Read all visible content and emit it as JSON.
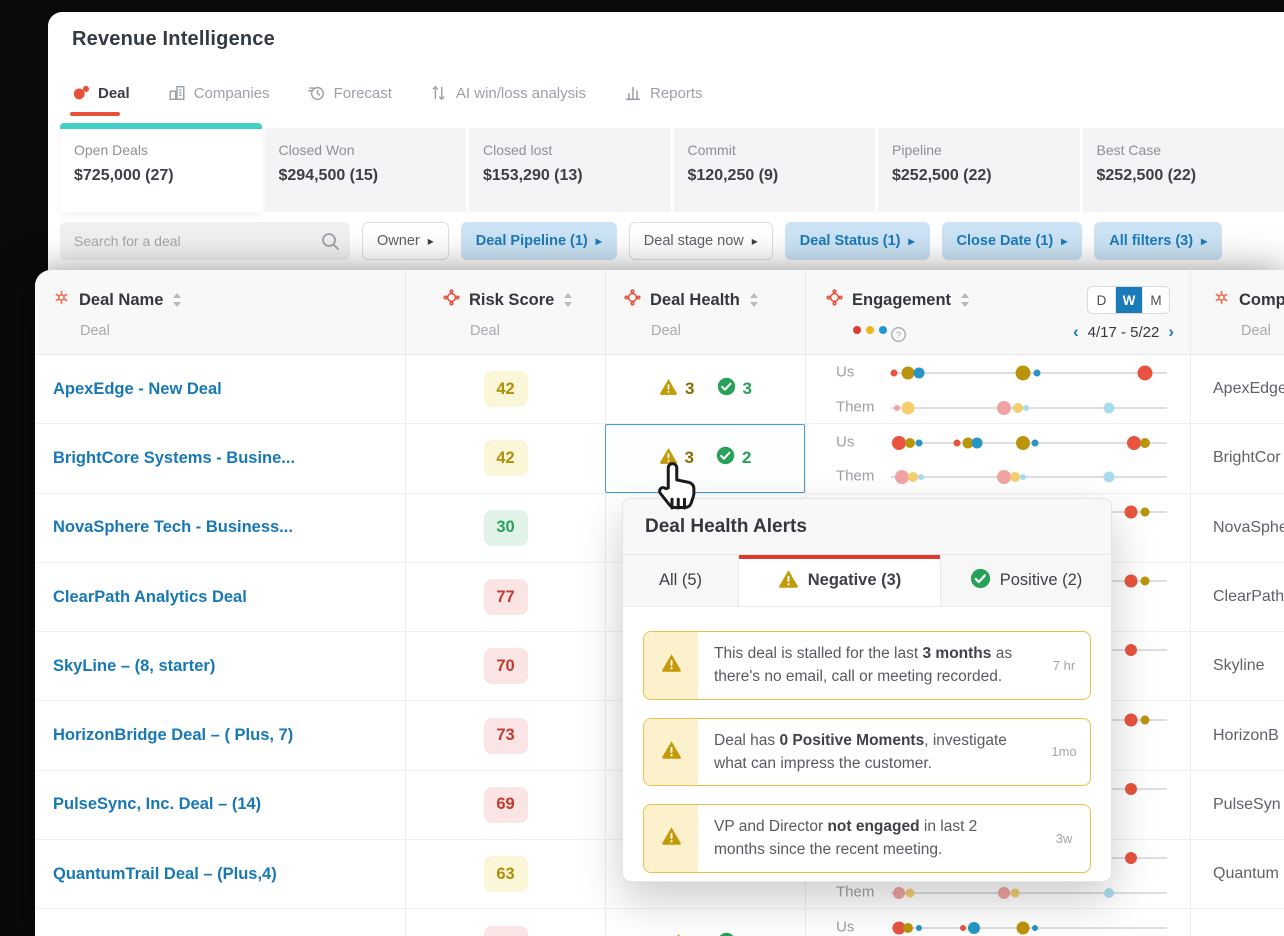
{
  "header": {
    "title": "Revenue Intelligence"
  },
  "nav": {
    "tabs": [
      {
        "label": "Deal",
        "icon": "gong-logo",
        "active": true
      },
      {
        "label": "Companies",
        "icon": "companies",
        "active": false
      },
      {
        "label": "Forecast",
        "icon": "forecast",
        "active": false
      },
      {
        "label": "AI win/loss analysis",
        "icon": "ai-winloss",
        "active": false
      },
      {
        "label": "Reports",
        "icon": "reports",
        "active": false
      }
    ]
  },
  "summary_cards": [
    {
      "label": "Open Deals",
      "value": "$725,000 (27)",
      "active": true
    },
    {
      "label": "Closed Won",
      "value": "$294,500 (15)",
      "active": false
    },
    {
      "label": "Closed lost",
      "value": "$153,290 (13)",
      "active": false
    },
    {
      "label": "Commit",
      "value": "$120,250 (9)",
      "active": false
    },
    {
      "label": "Pipeline",
      "value": "$252,500 (22)",
      "active": false
    },
    {
      "label": "Best Case",
      "value": "$252,500 (22)",
      "active": false
    }
  ],
  "filters": {
    "search_placeholder": "Search for a deal",
    "buttons": [
      {
        "label": "Owner",
        "style": "plain"
      },
      {
        "label": "Deal Pipeline (1)",
        "style": "active"
      },
      {
        "label": "Deal stage now",
        "style": "plain"
      },
      {
        "label": "Deal Status (1)",
        "style": "active"
      },
      {
        "label": "Close Date (1)",
        "style": "active"
      },
      {
        "label": "All filters (3)",
        "style": "active"
      }
    ]
  },
  "table": {
    "columns": {
      "deal_name": {
        "label": "Deal Name",
        "sub": "Deal"
      },
      "risk": {
        "label": "Risk Score",
        "sub": "Deal"
      },
      "health": {
        "label": "Deal Health",
        "sub": "Deal"
      },
      "engagement": {
        "label": "Engagement",
        "period_options": [
          "D",
          "W",
          "M"
        ],
        "period_selected": "W",
        "date_range": "4/17 - 5/22",
        "row_labels": [
          "Us",
          "Them"
        ]
      },
      "company": {
        "label": "Comp",
        "sub": "Deal"
      }
    },
    "rows": [
      {
        "name": "ApexEdge - New Deal",
        "risk": {
          "value": "42",
          "level": "yellow"
        },
        "health": {
          "negative": "3",
          "positive": "3"
        },
        "selected": false,
        "company": "ApexEdge",
        "us": [
          [
            1,
            "red",
            7
          ],
          [
            6,
            "olive",
            13
          ],
          [
            10,
            "blue",
            11
          ],
          [
            48,
            "olive",
            15
          ],
          [
            53,
            "blue",
            7
          ],
          [
            92,
            "red",
            15
          ]
        ],
        "them": [
          [
            2,
            "pink",
            6
          ],
          [
            6,
            "yellow",
            13
          ],
          [
            41,
            "pink",
            14
          ],
          [
            46,
            "yellow",
            10
          ],
          [
            49,
            "ltblue",
            6
          ],
          [
            79,
            "ltblue",
            11
          ]
        ]
      },
      {
        "name": "BrightCore Systems - Busine...",
        "risk": {
          "value": "42",
          "level": "yellow"
        },
        "health": {
          "negative": "3",
          "positive": "2"
        },
        "selected": true,
        "company": "BrightCor",
        "us": [
          [
            3,
            "red",
            14
          ],
          [
            7,
            "olive",
            10
          ],
          [
            10,
            "blue",
            7
          ],
          [
            24,
            "red",
            7
          ],
          [
            28,
            "olive",
            11
          ],
          [
            31,
            "blue",
            11
          ],
          [
            48,
            "olive",
            14
          ],
          [
            52,
            "blue",
            7
          ],
          [
            88,
            "red",
            14
          ],
          [
            92,
            "olive",
            10
          ]
        ],
        "them": [
          [
            4,
            "pink",
            14
          ],
          [
            8,
            "yellow",
            10
          ],
          [
            11,
            "ltblue",
            6
          ],
          [
            41,
            "pink",
            14
          ],
          [
            45,
            "yellow",
            10
          ],
          [
            48,
            "ltblue",
            6
          ],
          [
            79,
            "ltblue",
            11
          ]
        ]
      },
      {
        "name": "NovaSphere Tech - Business...",
        "risk": {
          "value": "30",
          "level": "green"
        },
        "health": null,
        "selected": false,
        "company": "NovaSphe",
        "us": [
          [
            87,
            "red",
            13
          ],
          [
            92,
            "olive",
            9
          ]
        ],
        "them": []
      },
      {
        "name": "ClearPath Analytics Deal",
        "risk": {
          "value": "77",
          "level": "red"
        },
        "health": null,
        "selected": false,
        "company": "ClearPath",
        "us": [
          [
            87,
            "red",
            13
          ],
          [
            92,
            "olive",
            9
          ]
        ],
        "them": []
      },
      {
        "name": "SkyLine – (8, starter)",
        "risk": {
          "value": "70",
          "level": "red"
        },
        "health": null,
        "selected": false,
        "company": "Skyline",
        "us": [
          [
            87,
            "red",
            12
          ]
        ],
        "them": []
      },
      {
        "name": "HorizonBridge Deal – ( Plus, 7)",
        "risk": {
          "value": "73",
          "level": "red"
        },
        "health": null,
        "selected": false,
        "company": "HorizonB",
        "us": [
          [
            87,
            "red",
            13
          ],
          [
            92,
            "olive",
            9
          ]
        ],
        "them": []
      },
      {
        "name": "PulseSync, Inc. Deal – (14)",
        "risk": {
          "value": "69",
          "level": "red"
        },
        "health": null,
        "selected": false,
        "company": "PulseSyn",
        "us": [
          [
            87,
            "red",
            12
          ]
        ],
        "them": []
      },
      {
        "name": "QuantumTrail Deal – (Plus,4)",
        "risk": {
          "value": "63",
          "level": "yellow"
        },
        "health": null,
        "selected": false,
        "company": "Quantum",
        "us": [
          [
            3,
            "red",
            13
          ],
          [
            7,
            "olive",
            10
          ],
          [
            10,
            "blue",
            6
          ],
          [
            26,
            "red",
            6
          ],
          [
            30,
            "blue",
            12
          ],
          [
            48,
            "olive",
            13
          ],
          [
            52,
            "blue",
            6
          ],
          [
            87,
            "red",
            12
          ]
        ],
        "them": [
          [
            3,
            "pink",
            12
          ],
          [
            7,
            "yellow",
            9
          ],
          [
            41,
            "pink",
            12
          ],
          [
            45,
            "yellow",
            9
          ],
          [
            79,
            "ltblue",
            10
          ]
        ]
      },
      {
        "name": "",
        "risk": {
          "value": "",
          "level": "red"
        },
        "health": {
          "negative": "",
          "positive": ""
        },
        "selected": false,
        "company": "",
        "us": [
          [
            3,
            "red",
            13
          ],
          [
            6,
            "olive",
            10
          ],
          [
            10,
            "blue",
            6
          ],
          [
            26,
            "red",
            6
          ],
          [
            30,
            "blue",
            12
          ],
          [
            48,
            "olive",
            13
          ],
          [
            52,
            "blue",
            6
          ]
        ],
        "them": []
      }
    ]
  },
  "popup": {
    "title": "Deal Health Alerts",
    "tabs": [
      {
        "label": "All (5)",
        "icon": null,
        "active": false
      },
      {
        "label": "Negative (3)",
        "icon": "warning",
        "active": true
      },
      {
        "label": "Positive (2)",
        "icon": "check",
        "active": false
      }
    ],
    "alerts": [
      {
        "segments": [
          {
            "t": "This deal is stalled for the last "
          },
          {
            "t": "3 months",
            "b": true
          },
          {
            "t": " as there's no email, call or meeting recorded."
          }
        ],
        "time": "7 hr"
      },
      {
        "segments": [
          {
            "t": "Deal has "
          },
          {
            "t": "0 Positive Moments",
            "b": true
          },
          {
            "t": ", investigate what can impress the customer."
          }
        ],
        "time": "1mo"
      },
      {
        "segments": [
          {
            "t": "VP and Director "
          },
          {
            "t": "not engaged",
            "b": true
          },
          {
            "t": " in last 2 months since the recent meeting."
          }
        ],
        "time": "3w"
      }
    ]
  },
  "colors": {
    "accent_red": "#e8503a",
    "teal": "#41cfc6",
    "link_blue": "#1878b6",
    "chip_blue_bg": "#cbe3f5",
    "chip_blue_text": "#1b7ab8",
    "warning": "#c49a08",
    "positive_green": "#27a158",
    "legend": [
      "#e03c31",
      "#f0b51e",
      "#2596d1"
    ],
    "engagement_dots": {
      "red": "#e8543f",
      "olive": "#bb940c",
      "blue": "#2596c6",
      "pink": "#f2a3a3",
      "yellow": "#f3cf70",
      "ltblue": "#a9dcec"
    }
  }
}
